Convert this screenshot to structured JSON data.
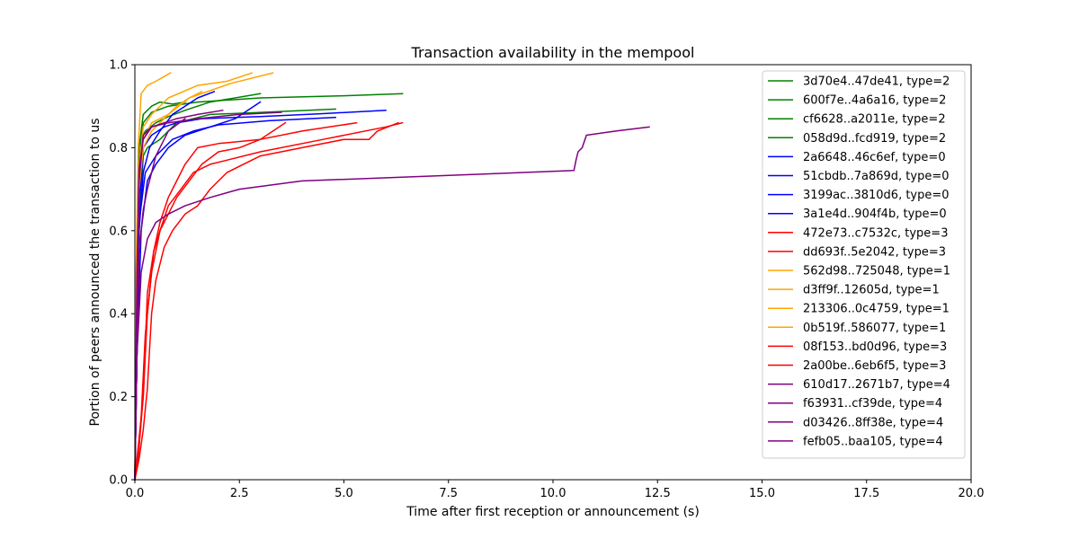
{
  "chart_data": {
    "type": "line",
    "title": "Transaction availability in the mempool",
    "xlabel": "Time after first reception or announcement (s)",
    "ylabel": "Portion of peers announced the transaction to us",
    "xlim": [
      0,
      20
    ],
    "ylim": [
      0,
      1
    ],
    "xticks": [
      0,
      2.5,
      5,
      7.5,
      10,
      12.5,
      15,
      17.5,
      20
    ],
    "xtick_labels": [
      "0.0",
      "2.5",
      "5.0",
      "7.5",
      "10.0",
      "12.5",
      "15.0",
      "17.5",
      "20.0"
    ],
    "yticks": [
      0,
      0.2,
      0.4,
      0.6,
      0.8,
      1.0
    ],
    "ytick_labels": [
      "0.0",
      "0.2",
      "0.4",
      "0.6",
      "0.8",
      "1.0"
    ],
    "grid": false,
    "legend_position": "top-right",
    "colors": {
      "type0": "#0000ff",
      "type1": "#ffa500",
      "type2": "#008000",
      "type3": "#ff0000",
      "type4": "#800080"
    },
    "series": [
      {
        "name": "3d70e4..47de41, type=2",
        "color": "#008000",
        "x": [
          0,
          0.05,
          0.1,
          0.15,
          0.25,
          0.5,
          0.8,
          1.2,
          1.8,
          3.0
        ],
        "y": [
          0,
          0.4,
          0.7,
          0.82,
          0.84,
          0.86,
          0.875,
          0.89,
          0.91,
          0.93
        ]
      },
      {
        "name": "600f7e..4a6a16, type=2",
        "color": "#008000",
        "x": [
          0,
          0.05,
          0.1,
          0.2,
          0.4,
          0.8,
          1.5,
          3.0,
          5.0,
          6.4
        ],
        "y": [
          0,
          0.45,
          0.75,
          0.86,
          0.885,
          0.9,
          0.91,
          0.92,
          0.925,
          0.93
        ]
      },
      {
        "name": "cf6628..a2011e, type=2",
        "color": "#008000",
        "x": [
          0,
          0.05,
          0.1,
          0.2,
          0.3,
          0.6,
          1.0,
          1.8,
          3.0,
          4.8
        ],
        "y": [
          0,
          0.3,
          0.6,
          0.78,
          0.8,
          0.82,
          0.86,
          0.88,
          0.885,
          0.893
        ]
      },
      {
        "name": "058d9d..fcd919, type=2",
        "color": "#008000",
        "x": [
          0,
          0.05,
          0.1,
          0.2,
          0.4,
          0.6,
          0.9,
          1.2
        ],
        "y": [
          0,
          0.5,
          0.8,
          0.88,
          0.9,
          0.91,
          0.905,
          0.91
        ]
      },
      {
        "name": "2a6648..46c6ef, type=0",
        "color": "#0000ff",
        "x": [
          0,
          0.05,
          0.15,
          0.3,
          0.5,
          0.8,
          1.2,
          1.8,
          2.4,
          3.0
        ],
        "y": [
          0,
          0.3,
          0.6,
          0.72,
          0.76,
          0.8,
          0.83,
          0.85,
          0.87,
          0.91
        ]
      },
      {
        "name": "51cbdb..7a869d, type=0",
        "color": "#0000ff",
        "x": [
          0,
          0.05,
          0.1,
          0.25,
          0.5,
          0.9,
          1.4,
          2.0,
          3.2,
          4.8
        ],
        "y": [
          0,
          0.35,
          0.62,
          0.74,
          0.78,
          0.82,
          0.84,
          0.855,
          0.865,
          0.873
        ]
      },
      {
        "name": "3199ac..3810d6, type=0",
        "color": "#0000ff",
        "x": [
          0,
          0.05,
          0.1,
          0.2,
          0.4,
          0.7,
          1.0,
          1.6,
          3.0,
          4.5,
          6.0
        ],
        "y": [
          0,
          0.3,
          0.65,
          0.8,
          0.83,
          0.85,
          0.86,
          0.87,
          0.875,
          0.882,
          0.89
        ]
      },
      {
        "name": "3a1e4d..904f4b, type=0",
        "color": "#0000ff",
        "x": [
          0,
          0.05,
          0.1,
          0.2,
          0.35,
          0.6,
          0.9,
          1.2,
          1.5,
          1.9
        ],
        "y": [
          0,
          0.3,
          0.6,
          0.74,
          0.8,
          0.84,
          0.88,
          0.9,
          0.92,
          0.935
        ]
      },
      {
        "name": "472e73..c7532c, type=3",
        "color": "#ff0000",
        "x": [
          0,
          0.1,
          0.2,
          0.3,
          0.45,
          0.6,
          0.8,
          1.0,
          1.2,
          1.5,
          2.0,
          3.0,
          4.0,
          5.3
        ],
        "y": [
          0,
          0.1,
          0.2,
          0.4,
          0.55,
          0.62,
          0.68,
          0.72,
          0.76,
          0.8,
          0.81,
          0.82,
          0.84,
          0.86
        ]
      },
      {
        "name": "dd693f..5e2042, type=3",
        "color": "#ff0000",
        "x": [
          0,
          0.08,
          0.15,
          0.25,
          0.4,
          0.6,
          0.8,
          1.1,
          1.4,
          1.8,
          2.2,
          3.0,
          4.5,
          6.0,
          6.4
        ],
        "y": [
          0,
          0.05,
          0.15,
          0.35,
          0.5,
          0.6,
          0.66,
          0.7,
          0.74,
          0.76,
          0.77,
          0.79,
          0.82,
          0.85,
          0.86
        ]
      },
      {
        "name": "562d98..725048, type=1",
        "color": "#ffa500",
        "x": [
          0,
          0.03,
          0.08,
          0.15,
          0.3,
          0.5,
          0.85
        ],
        "y": [
          0,
          0.5,
          0.8,
          0.93,
          0.95,
          0.96,
          0.98
        ]
      },
      {
        "name": "d3ff9f..12605d, type=1",
        "color": "#ffa500",
        "x": [
          0,
          0.05,
          0.1,
          0.2,
          0.4,
          0.8,
          1.5,
          2.2,
          2.8
        ],
        "y": [
          0,
          0.4,
          0.75,
          0.85,
          0.88,
          0.92,
          0.95,
          0.96,
          0.98
        ]
      },
      {
        "name": "213306..0c4759, type=1",
        "color": "#ffa500",
        "x": [
          0,
          0.05,
          0.1,
          0.2,
          0.4,
          0.6,
          0.8,
          1.0,
          1.3,
          1.6
        ],
        "y": [
          0,
          0.45,
          0.7,
          0.8,
          0.84,
          0.86,
          0.88,
          0.9,
          0.92,
          0.935
        ]
      },
      {
        "name": "0b519f..586077, type=1",
        "color": "#ffa500",
        "x": [
          0,
          0.05,
          0.1,
          0.2,
          0.4,
          0.8,
          1.3,
          2.3,
          3.3
        ],
        "y": [
          0,
          0.4,
          0.72,
          0.82,
          0.86,
          0.88,
          0.92,
          0.955,
          0.98
        ]
      },
      {
        "name": "08f153..bd0d96, type=3",
        "color": "#ff0000",
        "x": [
          0,
          0.1,
          0.2,
          0.3,
          0.45,
          0.6,
          0.8,
          1.0,
          1.3,
          1.6,
          2.0,
          2.5,
          3.0,
          3.6
        ],
        "y": [
          0,
          0.08,
          0.2,
          0.45,
          0.55,
          0.6,
          0.64,
          0.68,
          0.72,
          0.76,
          0.79,
          0.8,
          0.82,
          0.86
        ]
      },
      {
        "name": "2a00be..6eb6f5, type=3",
        "color": "#ff0000",
        "x": [
          0,
          0.1,
          0.2,
          0.3,
          0.4,
          0.5,
          0.7,
          0.9,
          1.2,
          1.5,
          1.8,
          2.2,
          3.0,
          4.0,
          5.0,
          5.6,
          5.8,
          6.3
        ],
        "y": [
          0,
          0.05,
          0.12,
          0.22,
          0.4,
          0.48,
          0.56,
          0.6,
          0.64,
          0.66,
          0.7,
          0.74,
          0.78,
          0.8,
          0.82,
          0.82,
          0.84,
          0.86
        ]
      },
      {
        "name": "610d17..2671b7, type=4",
        "color": "#800080",
        "x": [
          0,
          0.05,
          0.15,
          0.3,
          0.5,
          0.8,
          1.2,
          1.8,
          2.5,
          4.0,
          8.0,
          10.5,
          10.55,
          10.6,
          10.7,
          10.8,
          11.5,
          12.3
        ],
        "y": [
          0,
          0.3,
          0.5,
          0.58,
          0.62,
          0.64,
          0.66,
          0.68,
          0.7,
          0.72,
          0.735,
          0.745,
          0.77,
          0.79,
          0.8,
          0.83,
          0.84,
          0.85
        ]
      },
      {
        "name": "f63931..cf39de, type=4",
        "color": "#800080",
        "x": [
          0,
          0.05,
          0.1,
          0.2,
          0.4,
          0.7,
          1.0,
          1.5,
          2.1
        ],
        "y": [
          0,
          0.5,
          0.75,
          0.82,
          0.85,
          0.86,
          0.87,
          0.88,
          0.89
        ]
      },
      {
        "name": "d03426..8ff38e, type=4",
        "color": "#800080",
        "x": [
          0,
          0.05,
          0.1,
          0.2,
          0.3,
          0.5,
          0.8,
          1.2
        ],
        "y": [
          0,
          0.3,
          0.55,
          0.65,
          0.7,
          0.78,
          0.84,
          0.87
        ]
      },
      {
        "name": "fefb05..baa105, type=4",
        "color": "#800080",
        "x": [
          0,
          0.05,
          0.1,
          0.2,
          0.4,
          0.8,
          1.5,
          2.5,
          3.5
        ],
        "y": [
          0,
          0.4,
          0.72,
          0.83,
          0.85,
          0.86,
          0.87,
          0.88,
          0.885
        ]
      }
    ]
  }
}
